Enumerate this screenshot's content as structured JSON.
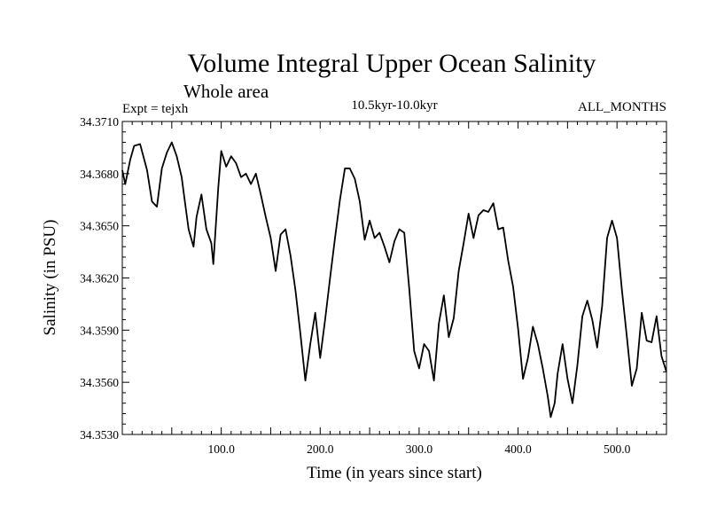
{
  "chart_data": {
    "type": "line",
    "title": "Volume Integral Upper Ocean Salinity",
    "subtitle": "Whole area",
    "expt_label": "Expt = tejxh",
    "period_label": "10.5kyr-10.0kyr",
    "months_label": "ALL_MONTHS",
    "xlabel": "Time (in years since start)",
    "ylabel": "Salinity (in PSU)",
    "xlim": [
      0,
      550
    ],
    "ylim": [
      34.353,
      34.371
    ],
    "x_tick_labels": [
      "100.0",
      "200.0",
      "300.0",
      "400.0",
      "500.0"
    ],
    "y_tick_labels": [
      "34.3530",
      "34.3560",
      "34.3590",
      "34.3620",
      "34.3650",
      "34.3680",
      "34.3710"
    ],
    "series": [
      {
        "name": "Salinity",
        "x": [
          0,
          3,
          8,
          12,
          18,
          25,
          30,
          35,
          40,
          45,
          50,
          55,
          60,
          63,
          67,
          72,
          75,
          80,
          85,
          90,
          92,
          97,
          100,
          105,
          110,
          115,
          120,
          125,
          130,
          135,
          140,
          145,
          150,
          155,
          160,
          165,
          170,
          175,
          180,
          185,
          190,
          195,
          200,
          205,
          210,
          215,
          220,
          225,
          230,
          235,
          240,
          245,
          250,
          255,
          260,
          265,
          270,
          275,
          280,
          285,
          290,
          295,
          300,
          305,
          310,
          315,
          320,
          325,
          330,
          335,
          340,
          345,
          350,
          355,
          360,
          365,
          370,
          375,
          380,
          385,
          390,
          395,
          400,
          405,
          410,
          415,
          420,
          425,
          430,
          433,
          437,
          440,
          445,
          450,
          455,
          460,
          465,
          470,
          475,
          480,
          485,
          490,
          495,
          500,
          505,
          510,
          515,
          520,
          525,
          530,
          535,
          540,
          545,
          550
        ],
        "values": [
          34.3682,
          34.3674,
          34.3688,
          34.3696,
          34.3697,
          34.3682,
          34.3664,
          34.3661,
          34.3683,
          34.3692,
          34.3698,
          34.369,
          34.3678,
          34.3665,
          34.3648,
          34.3638,
          34.3655,
          34.3668,
          34.3648,
          34.364,
          34.3628,
          34.3672,
          34.3693,
          34.3684,
          34.369,
          34.3686,
          34.3678,
          34.368,
          34.3674,
          34.368,
          34.3668,
          34.3655,
          34.3643,
          34.3624,
          34.3645,
          34.3648,
          34.3633,
          34.3613,
          34.3588,
          34.3561,
          34.3582,
          34.36,
          34.3574,
          34.3596,
          34.362,
          34.3643,
          34.3665,
          34.3683,
          34.3683,
          34.3677,
          34.3664,
          34.3642,
          34.3653,
          34.3643,
          34.3646,
          34.3638,
          34.3629,
          34.3641,
          34.3648,
          34.3646,
          34.3614,
          34.3578,
          34.3568,
          34.3582,
          34.3578,
          34.3561,
          34.3594,
          34.361,
          34.3586,
          34.3597,
          34.3624,
          34.364,
          34.3657,
          34.3643,
          34.3656,
          34.3659,
          34.3658,
          34.3663,
          34.3648,
          34.3649,
          34.363,
          34.3615,
          34.3591,
          34.3562,
          34.3574,
          34.3592,
          34.3582,
          34.3568,
          34.3552,
          34.354,
          34.3548,
          34.3565,
          34.3582,
          34.3562,
          34.3548,
          34.357,
          34.3598,
          34.3607,
          34.3596,
          34.358,
          34.3604,
          34.3643,
          34.3653,
          34.3643,
          34.3613,
          34.3586,
          34.3558,
          34.3568,
          34.36,
          34.3584,
          34.3583,
          34.3598,
          34.3575,
          34.3566
        ]
      }
    ]
  },
  "colors": {
    "line": "#000000",
    "background": "#ffffff"
  }
}
